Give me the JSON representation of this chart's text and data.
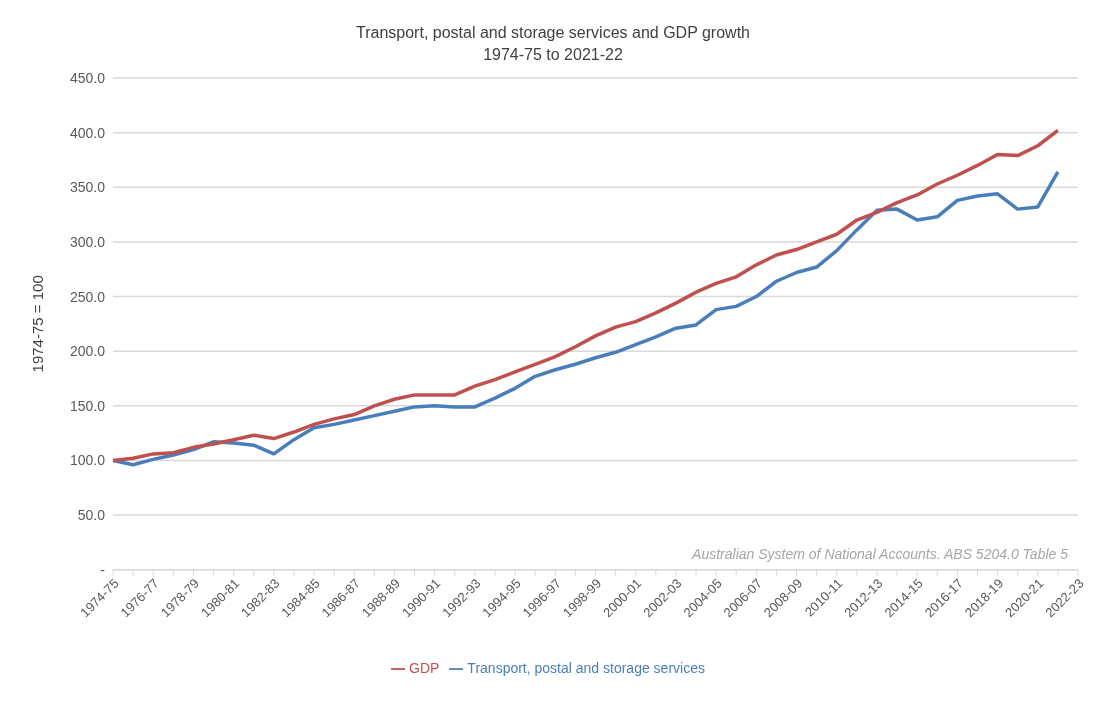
{
  "chart_data": {
    "type": "line",
    "title": "Transport, postal and storage services and GDP growth",
    "subtitle": "1974-75 to 2021-22",
    "ylabel": "1974-75 = 100",
    "categories": [
      "1974-75",
      null,
      "1976-77",
      null,
      "1978-79",
      null,
      "1980-81",
      null,
      "1982-83",
      null,
      "1984-85",
      null,
      "1986-87",
      null,
      "1988-89",
      null,
      "1990-91",
      null,
      "1992-93",
      null,
      "1994-95",
      null,
      "1996-97",
      null,
      "1998-99",
      null,
      "2000-01",
      null,
      "2002-03",
      null,
      "2004-05",
      null,
      "2006-07",
      null,
      "2008-09",
      null,
      "2010-11",
      null,
      "2012-13",
      null,
      "2014-15",
      null,
      "2016-17",
      null,
      "2018-19",
      null,
      "2020-21",
      null,
      "2022-23"
    ],
    "series": [
      {
        "name": "Transport, postal and storage services",
        "color": "#4a7ebb",
        "values": [
          100,
          96,
          101,
          105,
          110,
          117,
          116,
          114,
          106,
          119,
          130,
          133,
          137,
          141,
          145,
          149,
          150,
          149,
          149,
          157,
          166,
          177,
          183,
          188,
          194,
          199,
          206,
          213,
          221,
          224,
          238,
          241,
          250,
          264,
          272,
          277,
          292,
          311,
          329,
          330,
          320,
          323,
          338,
          342,
          344,
          330,
          332,
          364,
          null
        ]
      },
      {
        "name": "GDP",
        "color": "#c0504d",
        "values": [
          100,
          102,
          106,
          107,
          112,
          115,
          119,
          123,
          120,
          126,
          133,
          138,
          142,
          150,
          156,
          160,
          160,
          160,
          168,
          174,
          181,
          188,
          195,
          204,
          214,
          222,
          227,
          235,
          244,
          254,
          262,
          268,
          279,
          288,
          293,
          300,
          307,
          320,
          327,
          336,
          343,
          353,
          361,
          370,
          380,
          379,
          388,
          402,
          null
        ]
      }
    ],
    "ylim": [
      0,
      450
    ],
    "yticks": [
      {
        "value": 0,
        "label": "-"
      },
      {
        "value": 50,
        "label": "50.0"
      },
      {
        "value": 100,
        "label": "100.0"
      },
      {
        "value": 150,
        "label": "150.0"
      },
      {
        "value": 200,
        "label": "200.0"
      },
      {
        "value": 250,
        "label": "250.0"
      },
      {
        "value": 300,
        "label": "300.0"
      },
      {
        "value": 350,
        "label": "350.0"
      },
      {
        "value": 400,
        "label": "400.0"
      },
      {
        "value": 450,
        "label": "450.0"
      }
    ],
    "grid": "y",
    "legend": "bottom",
    "marker": "none",
    "line_style": "solid",
    "annotations": [
      "Australian System of National Accounts. ABS 5204.0 Table 5"
    ]
  }
}
